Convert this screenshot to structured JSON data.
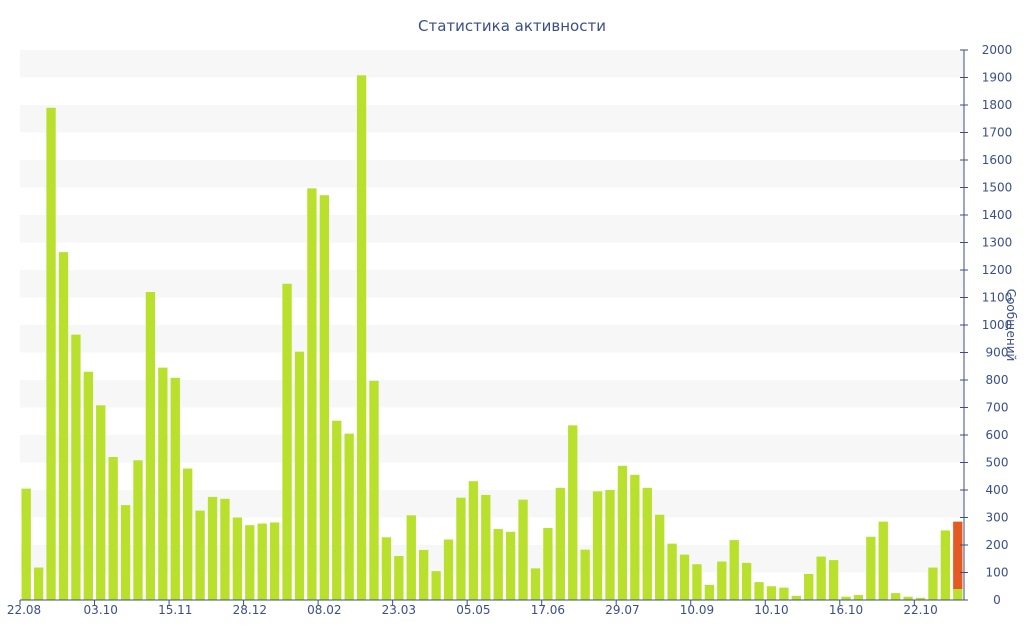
{
  "chart_data": {
    "type": "bar",
    "title": "Статистика активности",
    "xlabel": "",
    "ylabel": "Сообщений",
    "ylim": [
      0,
      2000
    ],
    "y_ticks": [
      0,
      100,
      200,
      300,
      400,
      500,
      600,
      700,
      800,
      900,
      1000,
      1100,
      1200,
      1300,
      1400,
      1500,
      1600,
      1700,
      1800,
      1900,
      2000
    ],
    "x_tick_labels": [
      "22.08",
      "03.10",
      "15.11",
      "28.12",
      "08.02",
      "23.03",
      "05.05",
      "17.06",
      "29.07",
      "10.09",
      "10.10",
      "16.10",
      "22.10"
    ],
    "y_axis_position": "right",
    "grid": "horizontal bands",
    "colors": {
      "bar": "#b8e02c",
      "highlight": "#e55a22",
      "axis": "#3b4f86",
      "band": "#f7f7f7"
    },
    "series": [
      {
        "values": [
          405,
          118,
          1790,
          1265,
          965,
          830,
          708,
          520,
          345,
          508,
          1120,
          845,
          808,
          478,
          325,
          375,
          368,
          300,
          272,
          278,
          282,
          1150,
          903,
          1497,
          1472,
          652,
          605,
          1908,
          797,
          228,
          160,
          308,
          182,
          105,
          220,
          372,
          432,
          382,
          258,
          248,
          365,
          115,
          262,
          408,
          635,
          183,
          395,
          400,
          488,
          455,
          408,
          310,
          205,
          165,
          130,
          55,
          140,
          218,
          135,
          65,
          50,
          45,
          15,
          95,
          158,
          145,
          12,
          18,
          230,
          285,
          25,
          12,
          8,
          118,
          253,
          285
        ]
      }
    ],
    "highlight": {
      "index": 75,
      "value": 285,
      "color": "#e55a22"
    }
  }
}
